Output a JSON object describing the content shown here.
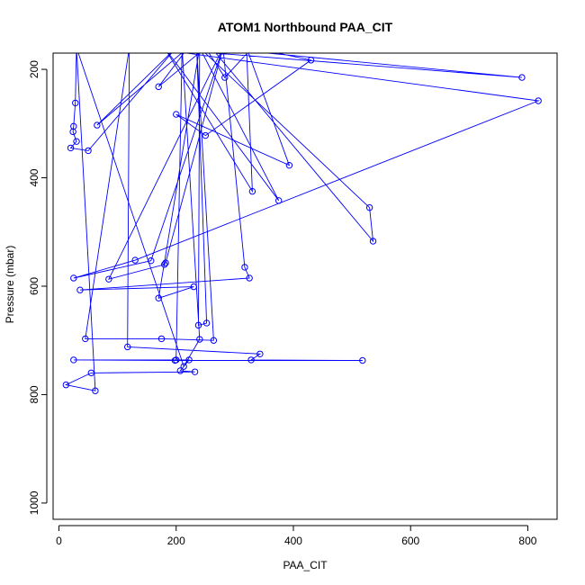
{
  "chart_data": {
    "type": "line",
    "title": "ATOM1 Northbound PAA_CIT",
    "xlabel": "PAA_CIT",
    "ylabel": "Pressure (mbar)",
    "xlim": [
      -10,
      850
    ],
    "ylim": [
      1030,
      170
    ],
    "y_reversed": true,
    "x_ticks": [
      0,
      200,
      400,
      600,
      800
    ],
    "y_ticks": [
      200,
      400,
      600,
      800,
      1000
    ],
    "grid": false,
    "legend": "none",
    "color": "#0000ff",
    "series": [
      {
        "points": [
          [
            30,
            160
          ],
          [
            28,
            262
          ],
          [
            25,
            305
          ],
          [
            24,
            315
          ],
          [
            30,
            333
          ],
          [
            20,
            345
          ],
          [
            50,
            350
          ],
          [
            200,
            160
          ],
          [
            65,
            303
          ],
          [
            220,
            160
          ],
          [
            170,
            232
          ],
          [
            250,
            160
          ],
          [
            283,
            215
          ],
          [
            330,
            160
          ],
          [
            430,
            183
          ],
          [
            250,
            322
          ],
          [
            200,
            283
          ],
          [
            393,
            377
          ],
          [
            320,
            160
          ],
          [
            330,
            425
          ],
          [
            180,
            160
          ],
          [
            375,
            442
          ],
          [
            240,
            160
          ],
          [
            530,
            455
          ],
          [
            536,
            517
          ],
          [
            260,
            160
          ],
          [
            790,
            215
          ],
          [
            150,
            160
          ],
          [
            818,
            258
          ],
          [
            130,
            552
          ],
          [
            25,
            585
          ],
          [
            157,
            553
          ],
          [
            280,
            160
          ],
          [
            182,
            557
          ],
          [
            180,
            560
          ],
          [
            85,
            587
          ],
          [
            280,
            160
          ],
          [
            317,
            565
          ],
          [
            325,
            585
          ],
          [
            36,
            607
          ],
          [
            230,
            601
          ],
          [
            170,
            622
          ],
          [
            240,
            160
          ],
          [
            238,
            672
          ],
          [
            252,
            668
          ],
          [
            235,
            160
          ],
          [
            264,
            700
          ],
          [
            175,
            697
          ],
          [
            45,
            697
          ],
          [
            120,
            160
          ],
          [
            117,
            712
          ],
          [
            343,
            725
          ],
          [
            328,
            736
          ],
          [
            518,
            737
          ],
          [
            198,
            737
          ],
          [
            25,
            736
          ],
          [
            222,
            736
          ],
          [
            207,
            756
          ],
          [
            232,
            758
          ],
          [
            55,
            760
          ],
          [
            12,
            782
          ],
          [
            62,
            793
          ],
          [
            30,
            160
          ],
          [
            213,
            748
          ],
          [
            240,
            698
          ],
          [
            210,
            160
          ],
          [
            200,
            736
          ]
        ]
      }
    ]
  }
}
